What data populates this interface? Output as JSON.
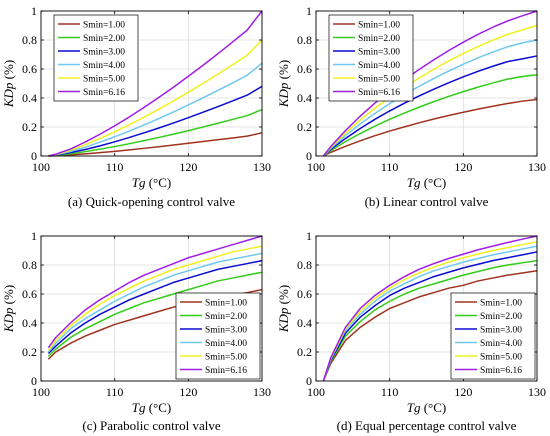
{
  "chart_data": [
    {
      "type": "line",
      "caption": "(a) Quick-opening control valve",
      "xlabel_var": "Tg",
      "xlabel_unit": "(°C)",
      "ylabel_var": "KDp",
      "ylabel_unit": "(%)",
      "xlim": [
        100,
        130
      ],
      "ylim": [
        0,
        1
      ],
      "xticks": [
        "100",
        "110",
        "120",
        "130"
      ],
      "yticks": [
        "0",
        "0.2",
        "0.4",
        "0.6",
        "0.8",
        "1"
      ],
      "grid": true,
      "legend_position": "top-left",
      "x": [
        101,
        102,
        104,
        106,
        108,
        110,
        112,
        114,
        116,
        118,
        120,
        122,
        124,
        126,
        128,
        130
      ],
      "series": [
        {
          "name": "Smin=1.00",
          "color": "#a0331f",
          "values": [
            0.0,
            0.002,
            0.008,
            0.015,
            0.023,
            0.032,
            0.042,
            0.053,
            0.064,
            0.076,
            0.088,
            0.1,
            0.112,
            0.124,
            0.137,
            0.16
          ]
        },
        {
          "name": "Smin=2.00",
          "color": "#33cc1a",
          "values": [
            0.0,
            0.004,
            0.015,
            0.03,
            0.047,
            0.065,
            0.085,
            0.106,
            0.128,
            0.151,
            0.175,
            0.2,
            0.226,
            0.252,
            0.279,
            0.32
          ]
        },
        {
          "name": "Smin=3.00",
          "color": "#0a0ad2",
          "values": [
            0.0,
            0.006,
            0.023,
            0.045,
            0.07,
            0.098,
            0.128,
            0.16,
            0.193,
            0.228,
            0.264,
            0.302,
            0.34,
            0.38,
            0.42,
            0.48
          ]
        },
        {
          "name": "Smin=4.00",
          "color": "#6ec8f0",
          "values": [
            0.0,
            0.008,
            0.031,
            0.061,
            0.095,
            0.132,
            0.172,
            0.214,
            0.258,
            0.304,
            0.352,
            0.401,
            0.452,
            0.504,
            0.557,
            0.64
          ]
        },
        {
          "name": "Smin=5.00",
          "color": "#f0f01e",
          "values": [
            0.0,
            0.01,
            0.039,
            0.077,
            0.12,
            0.166,
            0.216,
            0.268,
            0.323,
            0.38,
            0.44,
            0.501,
            0.564,
            0.629,
            0.695,
            0.8
          ]
        },
        {
          "name": "Smin=6.16",
          "color": "#a01ee6",
          "values": [
            0.0,
            0.012,
            0.048,
            0.096,
            0.15,
            0.208,
            0.27,
            0.335,
            0.404,
            0.475,
            0.55,
            0.626,
            0.705,
            0.786,
            0.869,
            1.0
          ]
        }
      ]
    },
    {
      "type": "line",
      "caption": "(b) Linear control valve",
      "xlabel_var": "Tg",
      "xlabel_unit": "(°C)",
      "ylabel_var": "KDp",
      "ylabel_unit": "(%)",
      "xlim": [
        100,
        130
      ],
      "ylim": [
        0,
        1
      ],
      "xticks": [
        "100",
        "110",
        "120",
        "130"
      ],
      "yticks": [
        "0",
        "0.2",
        "0.4",
        "0.6",
        "0.8",
        "1"
      ],
      "grid": true,
      "legend_position": "top-left",
      "x": [
        101,
        102,
        104,
        106,
        108,
        110,
        112,
        114,
        116,
        118,
        120,
        122,
        124,
        126,
        128,
        130
      ],
      "series": [
        {
          "name": "Smin=1.00",
          "color": "#a0331f",
          "values": [
            0.0,
            0.025,
            0.067,
            0.105,
            0.14,
            0.172,
            0.201,
            0.229,
            0.255,
            0.279,
            0.302,
            0.323,
            0.343,
            0.362,
            0.378,
            0.39
          ]
        },
        {
          "name": "Smin=2.00",
          "color": "#33cc1a",
          "values": [
            0.0,
            0.037,
            0.099,
            0.155,
            0.206,
            0.253,
            0.296,
            0.337,
            0.375,
            0.411,
            0.444,
            0.475,
            0.504,
            0.53,
            0.548,
            0.56
          ]
        },
        {
          "name": "Smin=3.00",
          "color": "#0a0ad2",
          "values": [
            0.0,
            0.045,
            0.121,
            0.19,
            0.253,
            0.311,
            0.364,
            0.414,
            0.461,
            0.505,
            0.546,
            0.584,
            0.619,
            0.651,
            0.67,
            0.69
          ]
        },
        {
          "name": "Smin=4.00",
          "color": "#6ec8f0",
          "values": [
            0.0,
            0.052,
            0.141,
            0.221,
            0.294,
            0.361,
            0.423,
            0.481,
            0.535,
            0.586,
            0.633,
            0.677,
            0.717,
            0.753,
            0.78,
            0.8
          ]
        },
        {
          "name": "Smin=5.00",
          "color": "#f0f01e",
          "values": [
            0.0,
            0.059,
            0.158,
            0.248,
            0.329,
            0.404,
            0.473,
            0.538,
            0.598,
            0.655,
            0.707,
            0.755,
            0.799,
            0.838,
            0.87,
            0.9
          ]
        },
        {
          "name": "Smin=6.16",
          "color": "#a01ee6",
          "values": [
            0.0,
            0.065,
            0.175,
            0.275,
            0.365,
            0.448,
            0.525,
            0.597,
            0.664,
            0.727,
            0.785,
            0.839,
            0.888,
            0.931,
            0.967,
            1.0
          ]
        }
      ]
    },
    {
      "type": "line",
      "caption": "(c) Parabolic control valve",
      "xlabel_var": "Tg",
      "xlabel_unit": "(°C)",
      "ylabel_var": "KDp",
      "ylabel_unit": "(%)",
      "xlim": [
        100,
        130
      ],
      "ylim": [
        0,
        1
      ],
      "xticks": [
        "100",
        "110",
        "120",
        "130"
      ],
      "yticks": [
        "0",
        "0.2",
        "0.4",
        "0.6",
        "0.8",
        "1"
      ],
      "grid": true,
      "legend_position": "bottom-right",
      "x": [
        101,
        102,
        104,
        106,
        108,
        110,
        112,
        114,
        116,
        118,
        120,
        122,
        124,
        126,
        128,
        130
      ],
      "series": [
        {
          "name": "Smin=1.00",
          "color": "#a0331f",
          "values": [
            0.15,
            0.2,
            0.26,
            0.31,
            0.35,
            0.39,
            0.42,
            0.45,
            0.48,
            0.51,
            0.53,
            0.55,
            0.57,
            0.59,
            0.61,
            0.63
          ]
        },
        {
          "name": "Smin=2.00",
          "color": "#33cc1a",
          "values": [
            0.17,
            0.22,
            0.3,
            0.36,
            0.41,
            0.46,
            0.5,
            0.54,
            0.57,
            0.6,
            0.63,
            0.66,
            0.69,
            0.71,
            0.73,
            0.75
          ]
        },
        {
          "name": "Smin=3.00",
          "color": "#0a0ad2",
          "values": [
            0.19,
            0.24,
            0.33,
            0.4,
            0.46,
            0.51,
            0.56,
            0.6,
            0.64,
            0.68,
            0.71,
            0.74,
            0.77,
            0.79,
            0.81,
            0.83
          ]
        },
        {
          "name": "Smin=4.00",
          "color": "#6ec8f0",
          "values": [
            0.2,
            0.26,
            0.36,
            0.43,
            0.49,
            0.55,
            0.6,
            0.65,
            0.69,
            0.73,
            0.76,
            0.79,
            0.82,
            0.84,
            0.86,
            0.88
          ]
        },
        {
          "name": "Smin=5.00",
          "color": "#f0f01e",
          "values": [
            0.21,
            0.28,
            0.38,
            0.46,
            0.53,
            0.59,
            0.64,
            0.69,
            0.73,
            0.77,
            0.8,
            0.83,
            0.86,
            0.89,
            0.91,
            0.93
          ]
        },
        {
          "name": "Smin=6.16",
          "color": "#a01ee6",
          "values": [
            0.23,
            0.3,
            0.4,
            0.49,
            0.56,
            0.62,
            0.68,
            0.73,
            0.77,
            0.81,
            0.85,
            0.88,
            0.91,
            0.94,
            0.97,
            1.0
          ]
        }
      ]
    },
    {
      "type": "line",
      "caption": "(d) Equal percentage control valve",
      "xlabel_var": "Tg",
      "xlabel_unit": "(°C)",
      "ylabel_var": "KDp",
      "ylabel_unit": "(%)",
      "xlim": [
        100,
        130
      ],
      "ylim": [
        0,
        1
      ],
      "xticks": [
        "100",
        "110",
        "120",
        "130"
      ],
      "yticks": [
        "0",
        "0.2",
        "0.4",
        "0.6",
        "0.8",
        "1"
      ],
      "grid": true,
      "legend_position": "bottom-right",
      "x": [
        101,
        102,
        104,
        106,
        108,
        110,
        112,
        114,
        116,
        118,
        120,
        122,
        124,
        126,
        128,
        130
      ],
      "series": [
        {
          "name": "Smin=1.00",
          "color": "#a0331f",
          "values": [
            0.0,
            0.12,
            0.28,
            0.37,
            0.44,
            0.5,
            0.54,
            0.58,
            0.61,
            0.64,
            0.66,
            0.69,
            0.71,
            0.73,
            0.745,
            0.76
          ]
        },
        {
          "name": "Smin=2.00",
          "color": "#33cc1a",
          "values": [
            0.0,
            0.13,
            0.31,
            0.41,
            0.49,
            0.55,
            0.6,
            0.64,
            0.67,
            0.7,
            0.73,
            0.755,
            0.78,
            0.8,
            0.815,
            0.83
          ]
        },
        {
          "name": "Smin=3.00",
          "color": "#0a0ad2",
          "values": [
            0.0,
            0.14,
            0.33,
            0.44,
            0.52,
            0.59,
            0.64,
            0.68,
            0.72,
            0.75,
            0.78,
            0.805,
            0.83,
            0.85,
            0.87,
            0.89
          ]
        },
        {
          "name": "Smin=4.00",
          "color": "#6ec8f0",
          "values": [
            0.0,
            0.15,
            0.35,
            0.46,
            0.55,
            0.62,
            0.67,
            0.72,
            0.76,
            0.79,
            0.82,
            0.845,
            0.87,
            0.89,
            0.91,
            0.93
          ]
        },
        {
          "name": "Smin=5.00",
          "color": "#f0f01e",
          "values": [
            0.0,
            0.155,
            0.36,
            0.48,
            0.57,
            0.64,
            0.7,
            0.745,
            0.785,
            0.82,
            0.85,
            0.875,
            0.9,
            0.92,
            0.94,
            0.96
          ]
        },
        {
          "name": "Smin=6.16",
          "color": "#a01ee6",
          "values": [
            0.0,
            0.16,
            0.37,
            0.5,
            0.59,
            0.66,
            0.72,
            0.77,
            0.81,
            0.845,
            0.875,
            0.905,
            0.93,
            0.955,
            0.978,
            1.0
          ]
        }
      ]
    }
  ]
}
